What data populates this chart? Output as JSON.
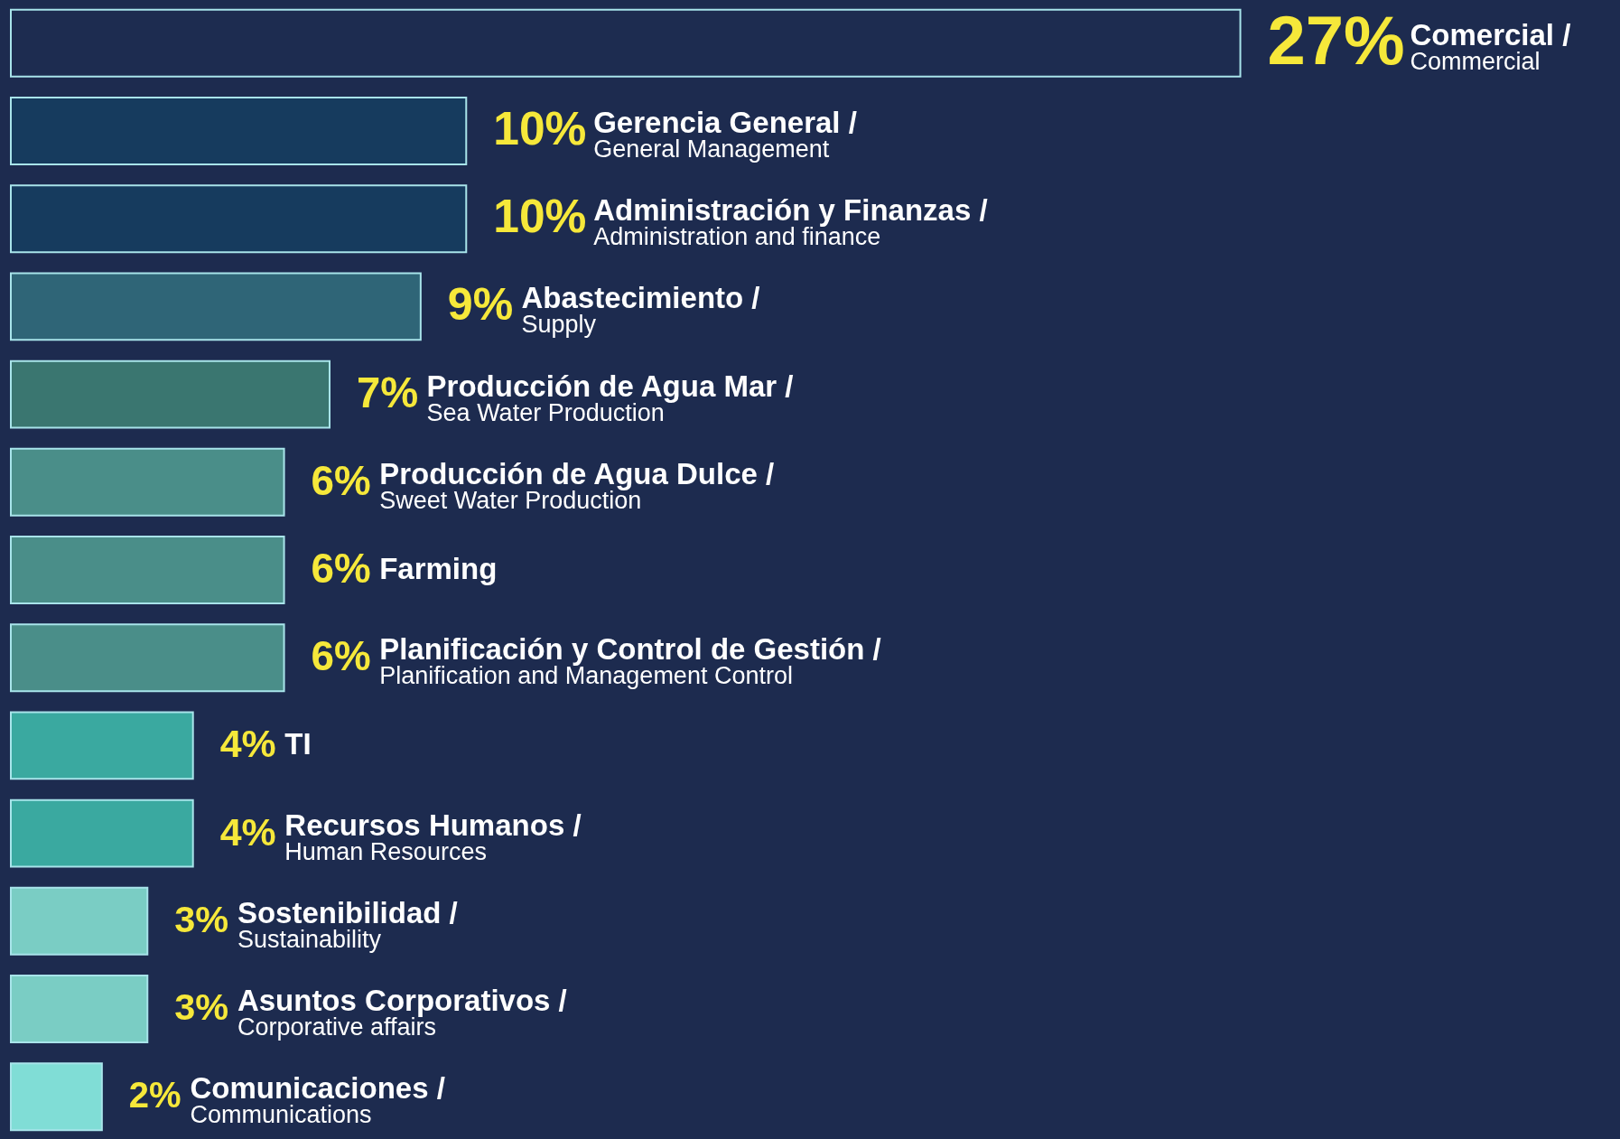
{
  "chart_data": {
    "type": "bar",
    "orientation": "horizontal",
    "categories": [
      "Comercial / Commercial",
      "Gerencia General / General Management",
      "Administración y Finanzas / Administration and finance",
      "Abastecimiento / Supply",
      "Producción de Agua Mar / Sea Water Production",
      "Producción de Agua Dulce / Sweet Water Production",
      "Farming",
      "Planificación y Control de Gestión / Planification and Management Control",
      "TI",
      "Recursos Humanos / Human Resources",
      "Sostenibilidad / Sustainability",
      "Asuntos Corporativos / Corporative affairs",
      "Comunicaciones / Communications"
    ],
    "values": [
      27,
      10,
      10,
      9,
      7,
      6,
      6,
      6,
      4,
      4,
      3,
      3,
      2
    ],
    "value_labels": [
      "27%",
      "10%",
      "10%",
      "9%",
      "7%",
      "6%",
      "6%",
      "6%",
      "4%",
      "4%",
      "3%",
      "3%",
      "2%"
    ],
    "colors": [
      "#1d2c50",
      "#163b5e",
      "#163b5e",
      "#2f6577",
      "#3a7670",
      "#4a8e89",
      "#4a8e89",
      "#4a8e89",
      "#3aa9a0",
      "#3aa9a0",
      "#7acdc4",
      "#7acdc4",
      "#80ddd6"
    ],
    "tick_labels": false
  }
}
